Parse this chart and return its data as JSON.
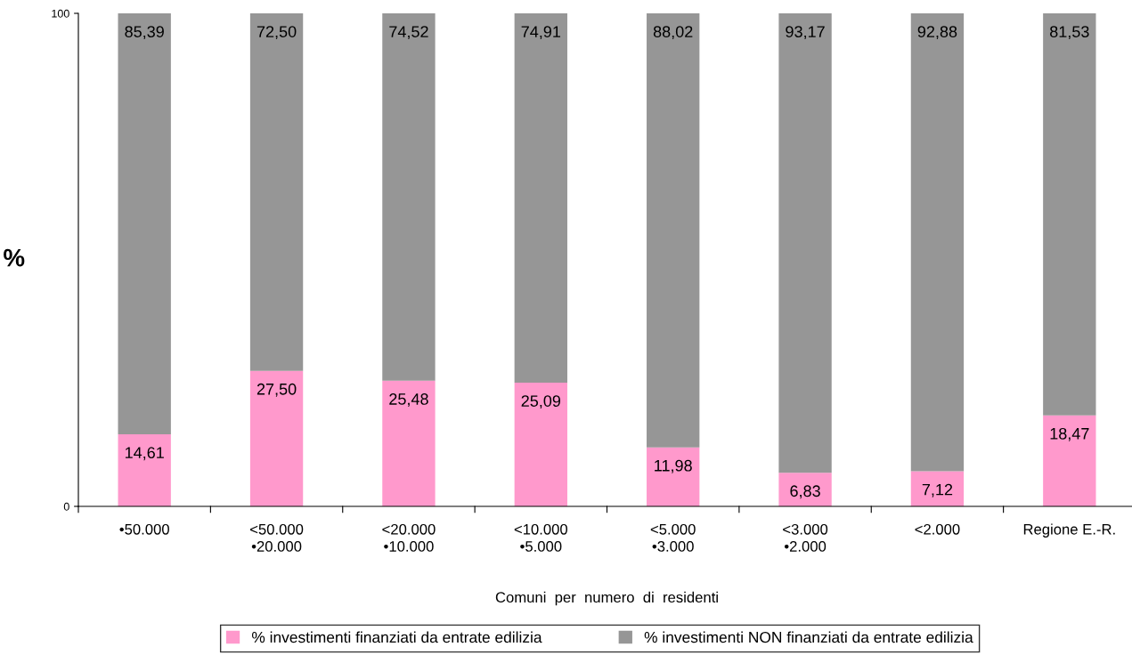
{
  "chart_data": {
    "type": "bar",
    "stacked": true,
    "xlabel": "Comuni  per  numero  di  residenti",
    "ylabel": "%",
    "categories": [
      "•50.000",
      "<50.000\n•20.000",
      "<20.000\n•10.000",
      "<10.000\n•5.000",
      "<5.000\n•3.000",
      "<3.000\n•2.000",
      "<2.000",
      "Regione E.-R."
    ],
    "series": [
      {
        "name": "% investimenti finanziati da entrate edilizia",
        "color": "#ff99cc",
        "values": [
          14.61,
          27.5,
          25.48,
          25.09,
          11.98,
          6.83,
          7.12,
          18.47
        ],
        "value_labels": [
          "14,61",
          "27,50",
          "25,48",
          "25,09",
          "11,98",
          "6,83",
          "7,12",
          "18,47"
        ]
      },
      {
        "name": "% investimenti NON finanziati da entrate edilizia",
        "color": "#969696",
        "values": [
          85.39,
          72.5,
          74.52,
          74.91,
          88.02,
          93.17,
          92.88,
          81.53
        ],
        "value_labels": [
          "85,39",
          "72,50",
          "74,52",
          "74,91",
          "88,02",
          "93,17",
          "92,88",
          "81,53"
        ]
      }
    ],
    "ylim": [
      0,
      100
    ],
    "yticks": [
      0,
      100
    ],
    "grid": false,
    "legend": "bottom"
  }
}
